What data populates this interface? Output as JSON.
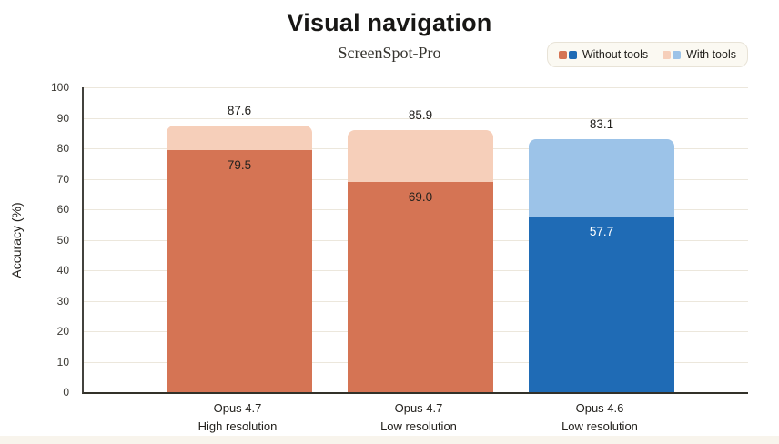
{
  "page": {
    "background": "#ffffff",
    "footer_strip_color": "#f8f4ec"
  },
  "header": {
    "title": "Visual navigation",
    "subtitle": "ScreenSpot-Pro"
  },
  "legend": {
    "background": "#fbf9f2",
    "border": "#e8e3d7",
    "items": [
      {
        "label": "Without tools",
        "swatches": [
          "#d57454",
          "#1f6bb5"
        ]
      },
      {
        "label": "With tools",
        "swatches": [
          "#f6cfba",
          "#9cc3e8"
        ]
      }
    ]
  },
  "chart_data": {
    "type": "bar",
    "variant": "overlaid-stacked-columns",
    "title": "Visual navigation",
    "subtitle": "ScreenSpot-Pro",
    "xlabel": "",
    "ylabel": "Accuracy (%)",
    "ylim": [
      0,
      100
    ],
    "yticks": [
      0,
      10,
      20,
      30,
      40,
      50,
      60,
      70,
      80,
      90,
      100
    ],
    "grid": true,
    "legend_position": "top-right",
    "axis_color": "#3a3934",
    "gridline_color": "#ece7dc",
    "categories": [
      "Opus 4.7 High resolution",
      "Opus 4.7 Low resolution",
      "Opus 4.6 Low resolution"
    ],
    "series": [
      {
        "name": "Without tools",
        "values": [
          79.5,
          69.0,
          57.7
        ]
      },
      {
        "name": "With tools",
        "values": [
          87.6,
          85.9,
          83.1
        ]
      }
    ],
    "bars": [
      {
        "category_line1": "Opus 4.7",
        "category_line2": "High resolution",
        "without_tools": 79.5,
        "with_tools": 87.6,
        "without_label": "79.5",
        "with_label": "87.6",
        "solid_color": "#d57454",
        "light_color": "#f6cfba",
        "inner_label_color": "#24221e"
      },
      {
        "category_line1": "Opus 4.7",
        "category_line2": "Low resolution",
        "without_tools": 69.0,
        "with_tools": 85.9,
        "without_label": "69.0",
        "with_label": "85.9",
        "solid_color": "#d57454",
        "light_color": "#f6cfba",
        "inner_label_color": "#24221e"
      },
      {
        "category_line1": "Opus 4.6",
        "category_line2": "Low resolution",
        "without_tools": 57.7,
        "with_tools": 83.1,
        "without_label": "57.7",
        "with_label": "83.1",
        "solid_color": "#1f6bb5",
        "light_color": "#9cc3e8",
        "inner_label_color": "#ffffff"
      }
    ]
  }
}
